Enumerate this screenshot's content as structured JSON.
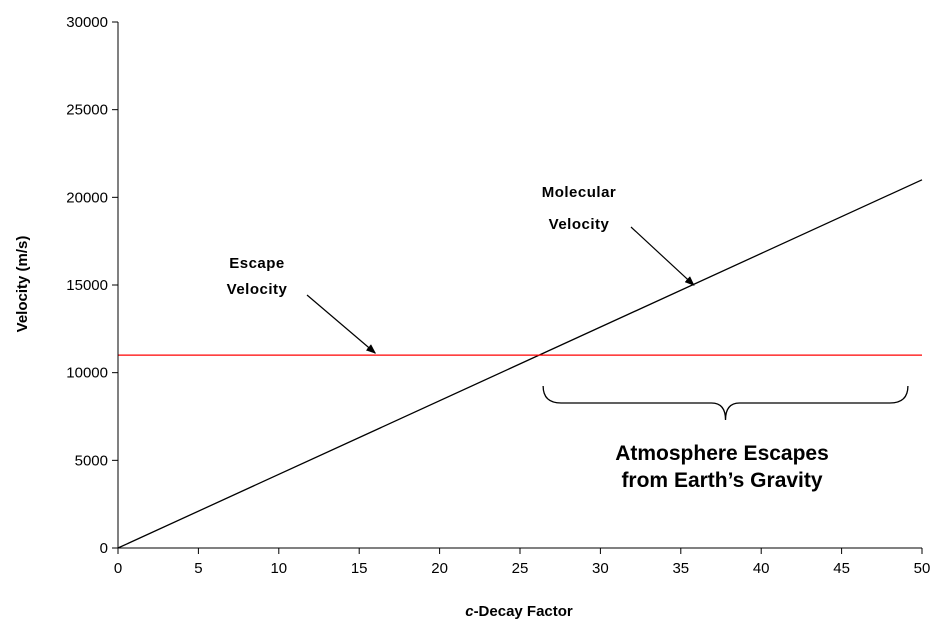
{
  "chart_data": {
    "type": "line",
    "title": "",
    "xlabel": {
      "italic_part": "c",
      "rest": "-Decay Factor"
    },
    "ylabel": "Velocity (m/s)",
    "xlim": [
      0,
      50
    ],
    "ylim": [
      0,
      30000
    ],
    "xticks": [
      0,
      5,
      10,
      15,
      20,
      25,
      30,
      35,
      40,
      45,
      50
    ],
    "yticks": [
      0,
      5000,
      10000,
      15000,
      20000,
      25000,
      30000
    ],
    "grid": false,
    "legend": "none",
    "series": [
      {
        "color": "#000000",
        "x": [
          0,
          50
        ],
        "y": [
          0,
          21000
        ]
      },
      {
        "color": "#ff0000",
        "x": [
          0,
          50
        ],
        "y": [
          11000,
          11000
        ]
      }
    ],
    "annotations": [
      {
        "lines": [
          "Escape",
          "Velocity"
        ],
        "arrow_to": [
          16.0,
          11000
        ]
      },
      {
        "lines": [
          "Molecular",
          "Velocity"
        ],
        "arrow_to": [
          36.0,
          15100
        ]
      },
      {
        "lines": [
          "Atmosphere Escapes",
          "from Earth’s Gravity"
        ],
        "brace_x": [
          26.5,
          49
        ]
      }
    ]
  }
}
